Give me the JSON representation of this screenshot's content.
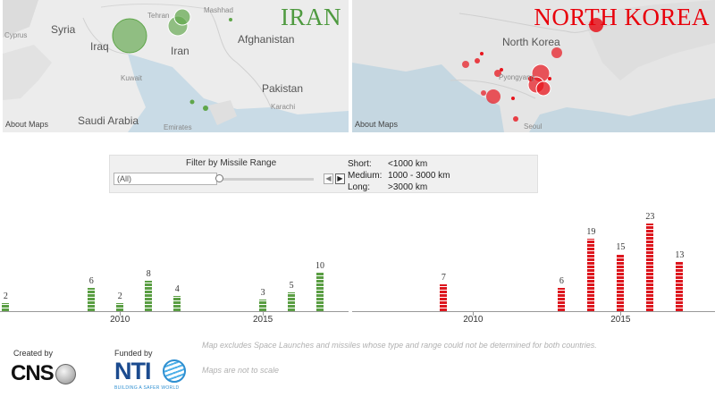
{
  "maps": {
    "iran": {
      "title": "IRAN",
      "places": [
        "Syria",
        "Cyprus",
        "Iraq",
        "Kuwait",
        "Saudi Arabia",
        "Tehran",
        "Iran",
        "Mashhad",
        "Afghanistan",
        "Pakistan",
        "Karachi",
        "Emirates"
      ],
      "about": "About Maps",
      "title_color": "#4f9a40"
    },
    "north_korea": {
      "title": "NORTH KOREA",
      "places": [
        "North Korea",
        "Pyongyang",
        "Seoul"
      ],
      "about": "About Maps",
      "title_color": "#e8000b"
    }
  },
  "filter": {
    "title": "Filter by Missile Range",
    "value": "(All)",
    "prev_icon": "chevron-left-icon",
    "next_icon": "chevron-right-icon",
    "legend": [
      {
        "key": "Short:",
        "value": "<1000 km"
      },
      {
        "key": "Medium:",
        "value": "1000 - 3000 km"
      },
      {
        "key": "Long:",
        "value": ">3000 km"
      }
    ]
  },
  "charts": {
    "iran_color": "#5a9e43",
    "nk_color": "#dd161e"
  },
  "chart_data": [
    {
      "type": "bar",
      "x": [
        2006,
        2009,
        2010,
        2011,
        2012,
        2015,
        2016,
        2017
      ],
      "values": [
        2,
        6,
        2,
        8,
        4,
        3,
        5,
        10
      ],
      "tick_labels": [
        "2010",
        "2015"
      ],
      "xlim": [
        2005.8,
        2018
      ]
    },
    {
      "type": "bar",
      "x": [
        2009,
        2013,
        2014,
        2015,
        2016,
        2017
      ],
      "values": [
        7,
        6,
        19,
        15,
        23,
        13
      ],
      "tick_labels": [
        "2010",
        "2015"
      ],
      "xlim": [
        2005.9,
        2018.2
      ]
    }
  ],
  "footer": {
    "created_by": "Created by",
    "cns": "CNS",
    "funded_by": "Funded by",
    "nti": "NTI",
    "nti_tagline": "BUILDING A SAFER WORLD",
    "note1": "Map excludes Space Launches and missiles whose type and range could not be determined for both countries.",
    "note2": "Maps are not to scale"
  }
}
